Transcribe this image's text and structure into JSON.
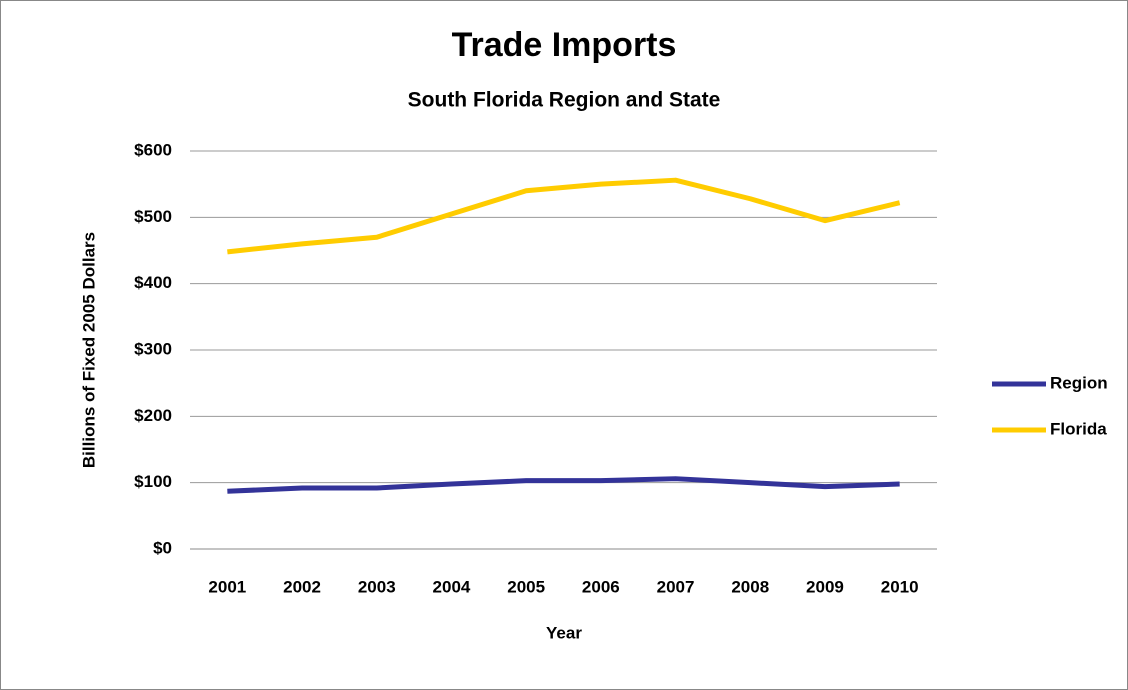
{
  "chart_data": {
    "type": "line",
    "title": "Trade Imports",
    "subtitle": "South Florida Region and State",
    "x_label": "Year",
    "y_label": "Billions of Fixed 2005 Dollars",
    "categories": [
      "2001",
      "2002",
      "2003",
      "2004",
      "2005",
      "2006",
      "2007",
      "2008",
      "2009",
      "2010"
    ],
    "series": [
      {
        "name": "Region",
        "color": "#333399",
        "values": [
          87,
          92,
          92,
          98,
          103,
          103,
          106,
          100,
          94,
          98
        ]
      },
      {
        "name": "Florida",
        "color": "#ffcc00",
        "values": [
          448,
          460,
          470,
          505,
          540,
          550,
          556,
          528,
          495,
          522
        ]
      }
    ],
    "ylim": [
      0,
      600
    ],
    "yticks": [
      {
        "value": 0,
        "label": "$0"
      },
      {
        "value": 100,
        "label": "$100"
      },
      {
        "value": 200,
        "label": "$200"
      },
      {
        "value": 300,
        "label": "$300"
      },
      {
        "value": 400,
        "label": "$400"
      },
      {
        "value": 500,
        "label": "$500"
      },
      {
        "value": 600,
        "label": "$600"
      }
    ],
    "grid": true,
    "legend": "right"
  }
}
